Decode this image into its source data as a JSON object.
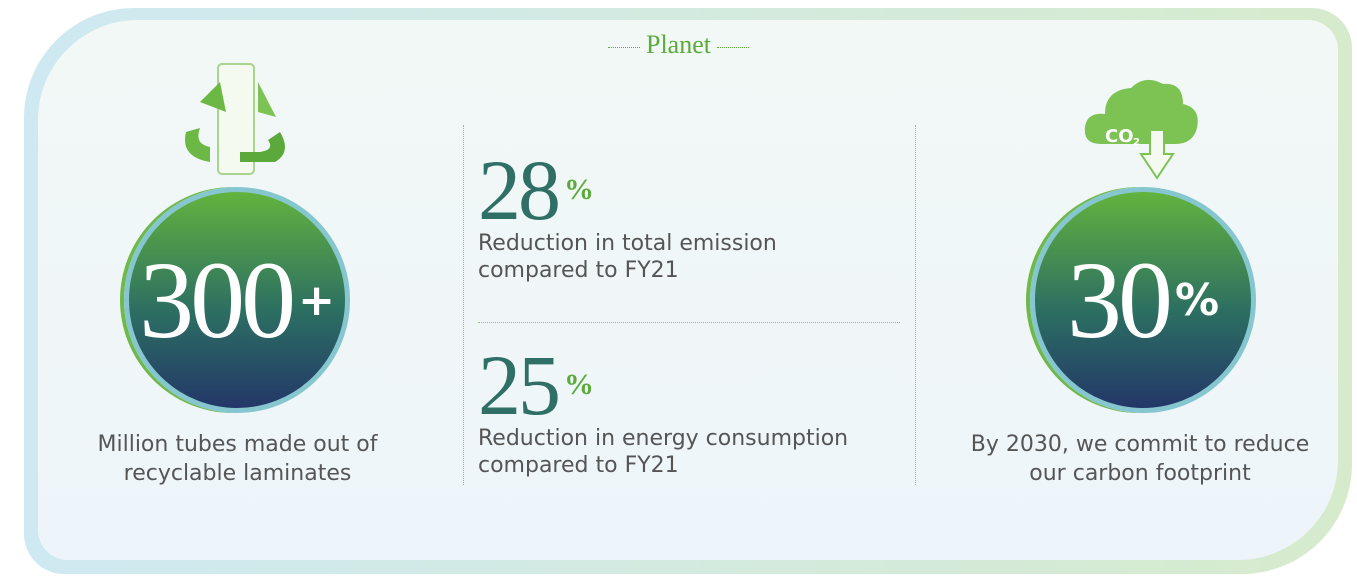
{
  "header": {
    "title": "Planet"
  },
  "stats": [
    {
      "value": "300",
      "suffix": "+",
      "caption": [
        "Million tubes made out of",
        "recyclable laminates"
      ]
    },
    {
      "value": "28",
      "suffix": "%",
      "caption": [
        "Reduction in total emission",
        "compared to FY21"
      ]
    },
    {
      "value": "25",
      "suffix": "%",
      "caption": [
        "Reduction in energy consumption",
        "compared to FY21"
      ]
    },
    {
      "value": "30",
      "suffix": "%",
      "caption": [
        "By 2030, we commit to reduce",
        "our carbon footprint"
      ]
    }
  ],
  "icon": {
    "label": "CO",
    "subscript": "2"
  }
}
